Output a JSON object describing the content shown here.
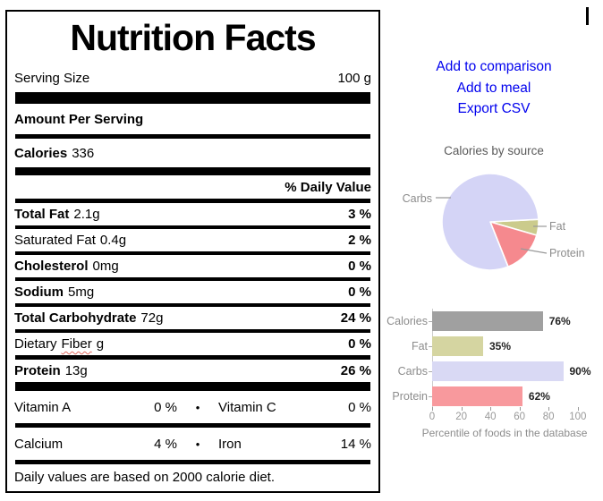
{
  "nutrition_label": {
    "title": "Nutrition Facts",
    "serving_row": {
      "label": "Serving Size",
      "value": "100 g"
    },
    "amount_header": "Amount Per Serving",
    "calories_row": {
      "label": "Calories",
      "value": "336"
    },
    "daily_value_header": "% Daily Value",
    "nutrients": [
      {
        "name": "Total Fat",
        "amount": "2.1g",
        "daily_value": "3 %"
      },
      {
        "name": "Saturated Fat",
        "amount": "0.4g",
        "daily_value": "2 %"
      },
      {
        "name": "Cholesterol",
        "amount": "0mg",
        "daily_value": "0 %"
      },
      {
        "name": "Sodium",
        "amount": "5mg",
        "daily_value": "0 %"
      },
      {
        "name": "Total Carbohydrate",
        "amount": "72g",
        "daily_value": "24 %"
      },
      {
        "name_prefix": "Dietary",
        "name_misspelled": "Fiber",
        "amount": "g",
        "daily_value": "0 %"
      },
      {
        "name": "Protein",
        "amount": "13g",
        "daily_value": "26 %"
      }
    ],
    "micronutrient_rows": [
      {
        "left_name": "Vitamin A",
        "left_value": "0 %",
        "bullet": "•",
        "right_name": "Vitamin C",
        "right_value": "0 %"
      },
      {
        "left_name": "Calcium",
        "left_value": "4 %",
        "bullet": "•",
        "right_name": "Iron",
        "right_value": "14 %"
      }
    ],
    "footnote": "Daily values are based on 2000 calorie diet."
  },
  "actions": {
    "add_to_comparison": "Add to comparison",
    "add_to_meal": "Add to meal",
    "export_csv": "Export CSV",
    "link_color": "#0000ee"
  },
  "chart_data": [
    {
      "type": "pie",
      "title": "Calories by source",
      "start_angle_deg": -3,
      "slices": [
        {
          "label": "Fat",
          "value": 5.3,
          "color": "#cbcb8c"
        },
        {
          "label": "Protein",
          "value": 14.5,
          "color": "#f5898e"
        },
        {
          "label": "Carbs",
          "value": 80.2,
          "color": "#d4d4f6"
        }
      ],
      "legend_position": "callout-labels",
      "slice_border_color": "#ffffff"
    },
    {
      "type": "bar",
      "orientation": "horizontal",
      "categories": [
        "Calories",
        "Fat",
        "Carbs",
        "Protein"
      ],
      "values": [
        76,
        35,
        90,
        62
      ],
      "value_labels": [
        "76%",
        "35%",
        "90%",
        "62%"
      ],
      "colors": [
        "#a0a0a0",
        "#d5d5a1",
        "#d9d9f4",
        "#f8999d"
      ],
      "xlabel": "Percentile of foods in the database",
      "xlim": [
        0,
        100
      ],
      "xticks": [
        0,
        20,
        40,
        60,
        80,
        100
      ],
      "grid": false
    }
  ]
}
